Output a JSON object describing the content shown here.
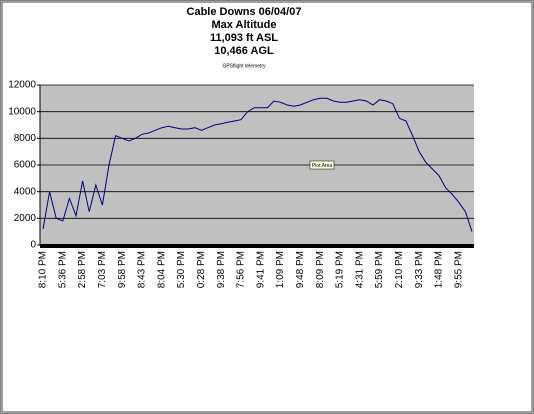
{
  "chart_data": {
    "type": "line",
    "title": [
      "Cable Downs 06/04/07",
      "Max Altitude",
      "11,093 ft ASL",
      "10,466 AGL"
    ],
    "subtitle": "GPSflight telemetry",
    "annotation": "Plot Area",
    "categories": [
      "8:10 PM",
      null,
      null,
      "5:36 PM",
      null,
      null,
      "2:58 PM",
      null,
      null,
      "7:03 PM",
      null,
      null,
      "9:58 PM",
      null,
      null,
      "8:43 PM",
      null,
      null,
      "8:04 PM",
      null,
      null,
      "5:30 PM",
      null,
      null,
      "0:28 PM",
      null,
      null,
      "9:38 PM",
      null,
      null,
      "7:56 PM",
      null,
      null,
      "9:41 PM",
      null,
      null,
      "1:09 PM",
      null,
      null,
      "9:48 PM",
      null,
      null,
      "8:09 PM",
      null,
      null,
      "5:19 PM",
      null,
      null,
      "4:31 PM",
      null,
      null,
      "5:59 PM",
      null,
      null,
      "2:10 PM",
      null,
      null,
      "9:33 PM",
      null,
      null,
      "1:48 PM",
      null,
      null,
      "9:55 PM",
      null,
      null
    ],
    "series": [
      {
        "color": "#000080",
        "values": [
          1200,
          4000,
          2000,
          1800,
          3500,
          2200,
          4800,
          2500,
          4500,
          3000,
          6000,
          8200,
          8000,
          7800,
          8000,
          8300,
          8400,
          8600,
          8800,
          8900,
          8800,
          8700,
          8700,
          8800,
          8600,
          8800,
          9000,
          9100,
          9200,
          9300,
          9400,
          10000,
          10300,
          10300,
          10300,
          10800,
          10700,
          10500,
          10400,
          10500,
          10700,
          10900,
          11000,
          11000,
          10800,
          10700,
          10700,
          10800,
          10900,
          10800,
          10500,
          10900,
          10800,
          10600,
          9500,
          9300,
          8200,
          7000,
          6200,
          5700,
          5200,
          4300,
          3800,
          3200,
          2500,
          1000
        ]
      }
    ],
    "ylim": [
      0,
      12000
    ],
    "yticks": [
      0,
      2000,
      4000,
      6000,
      8000,
      10000,
      12000
    ],
    "grid": true
  }
}
